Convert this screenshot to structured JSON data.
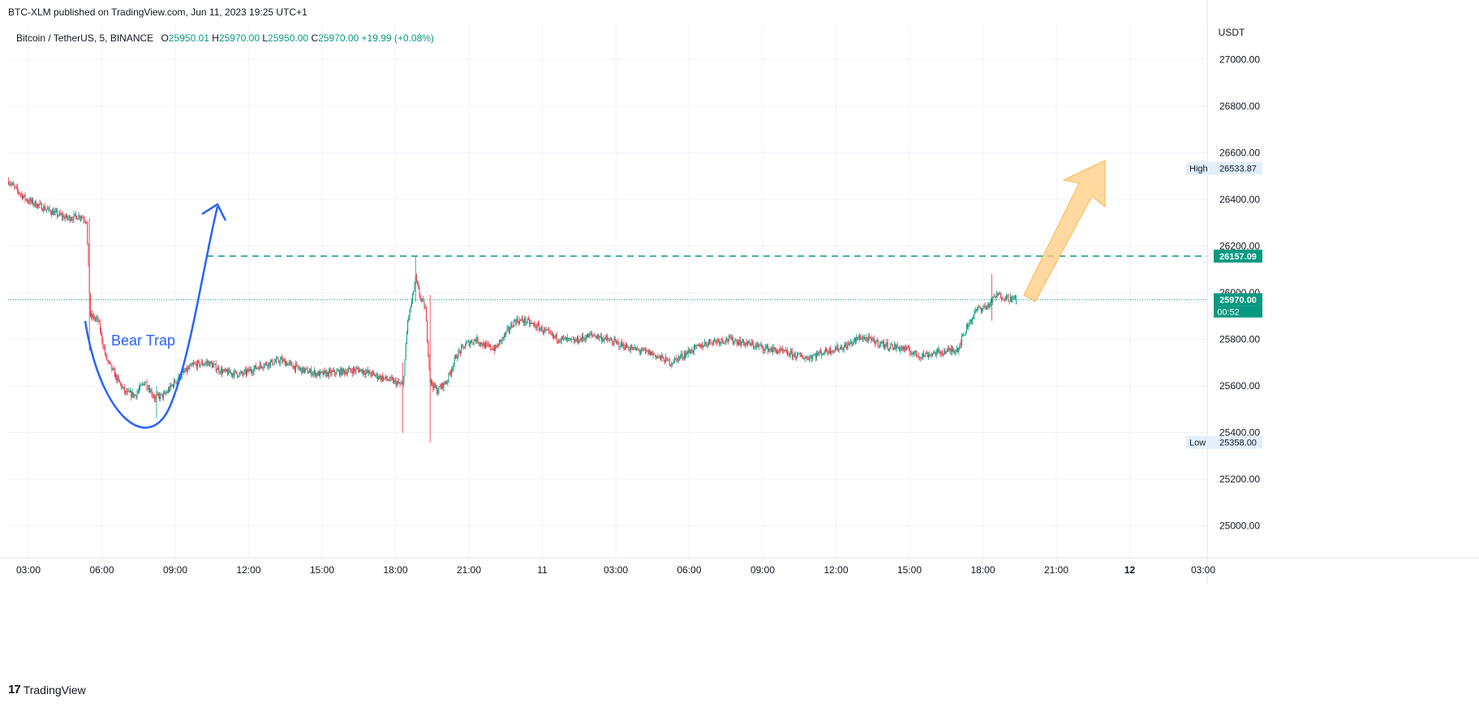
{
  "header": {
    "publish_line": "BTC-XLM published on TradingView.com, Jun 11, 2023 19:25 UTC+1"
  },
  "legend": {
    "symbol": "Bitcoin / TetherUS, 5, BINANCE",
    "open_label": "O",
    "open": "25950.01",
    "high_label": "H",
    "high": "25970.00",
    "low_label": "L",
    "low": "25950.00",
    "close_label": "C",
    "close": "25970.00",
    "change": "+19.99 (+0.08%)"
  },
  "brand": {
    "logo": "17",
    "name": "TradingView"
  },
  "colors": {
    "up": "#089981",
    "down": "#f23645",
    "grid": "#f0f3fa",
    "annotation_blue": "#2962ff",
    "annotation_orange": "#ffcc80",
    "level_line": "#089981",
    "label_bg": "#e3effd"
  },
  "chart_data": {
    "type": "candlestick",
    "currency": "USDT",
    "y_axis": {
      "unit": "USDT",
      "ticks": [
        25000,
        25200,
        25400,
        25600,
        25800,
        26000,
        26200,
        26400,
        26600,
        26800,
        27000
      ],
      "tick_labels": [
        "25000.00",
        "25200.00",
        "25400.00",
        "25600.00",
        "25800.00",
        "26000.00",
        "26200.00",
        "26400.00",
        "26600.00",
        "26800.00",
        "27000.00"
      ],
      "range": [
        24800,
        27200
      ]
    },
    "x_axis": {
      "tick_labels": [
        "03:00",
        "06:00",
        "09:00",
        "12:00",
        "15:00",
        "18:00",
        "21:00",
        "11",
        "03:00",
        "06:00",
        "09:00",
        "12:00",
        "15:00",
        "18:00",
        "21:00",
        "12",
        "03:00"
      ],
      "bold": [
        false,
        false,
        false,
        false,
        false,
        false,
        false,
        false,
        false,
        false,
        false,
        false,
        false,
        false,
        false,
        true,
        false
      ]
    },
    "price_path": [
      [
        0,
        26480
      ],
      [
        6,
        26450
      ],
      [
        18,
        26400
      ],
      [
        28,
        26380
      ],
      [
        38,
        26360
      ],
      [
        48,
        26340
      ],
      [
        60,
        26320
      ],
      [
        74,
        26330
      ],
      [
        80,
        26310
      ],
      [
        84,
        25900
      ],
      [
        92,
        25880
      ],
      [
        100,
        25720
      ],
      [
        110,
        25640
      ],
      [
        120,
        25570
      ],
      [
        130,
        25560
      ],
      [
        140,
        25620
      ],
      [
        150,
        25550
      ],
      [
        160,
        25560
      ],
      [
        175,
        25640
      ],
      [
        190,
        25690
      ],
      [
        205,
        25700
      ],
      [
        220,
        25660
      ],
      [
        240,
        25650
      ],
      [
        260,
        25690
      ],
      [
        280,
        25710
      ],
      [
        300,
        25670
      ],
      [
        320,
        25650
      ],
      [
        340,
        25660
      ],
      [
        360,
        25670
      ],
      [
        380,
        25640
      ],
      [
        395,
        25620
      ],
      [
        405,
        25600
      ],
      [
        410,
        25880
      ],
      [
        414,
        25960
      ],
      [
        418,
        26060
      ],
      [
        422,
        25990
      ],
      [
        428,
        25930
      ],
      [
        433,
        25620
      ],
      [
        440,
        25580
      ],
      [
        450,
        25620
      ],
      [
        460,
        25730
      ],
      [
        470,
        25780
      ],
      [
        480,
        25800
      ],
      [
        490,
        25770
      ],
      [
        500,
        25760
      ],
      [
        510,
        25820
      ],
      [
        520,
        25880
      ],
      [
        530,
        25880
      ],
      [
        545,
        25850
      ],
      [
        560,
        25810
      ],
      [
        580,
        25790
      ],
      [
        600,
        25820
      ],
      [
        620,
        25790
      ],
      [
        640,
        25760
      ],
      [
        660,
        25740
      ],
      [
        680,
        25700
      ],
      [
        700,
        25750
      ],
      [
        720,
        25790
      ],
      [
        740,
        25800
      ],
      [
        760,
        25780
      ],
      [
        780,
        25760
      ],
      [
        800,
        25740
      ],
      [
        820,
        25720
      ],
      [
        840,
        25750
      ],
      [
        860,
        25770
      ],
      [
        875,
        25810
      ],
      [
        890,
        25790
      ],
      [
        905,
        25770
      ],
      [
        920,
        25760
      ],
      [
        935,
        25730
      ],
      [
        950,
        25740
      ],
      [
        965,
        25750
      ],
      [
        975,
        25760
      ],
      [
        985,
        25860
      ],
      [
        995,
        25930
      ],
      [
        1005,
        25940
      ],
      [
        1015,
        25990
      ],
      [
        1025,
        25980
      ],
      [
        1035,
        25970
      ]
    ],
    "volatility": 18,
    "wick_spikes": [
      {
        "index": 83,
        "high": 26320,
        "low": 25750
      },
      {
        "index": 405,
        "high": 25700,
        "low": 25400
      },
      {
        "index": 418,
        "high": 26157.09,
        "low": 25960
      },
      {
        "index": 433,
        "high": 25990,
        "low": 25358
      },
      {
        "index": 152,
        "high": 25600,
        "low": 25460
      },
      {
        "index": 1010,
        "high": 26080,
        "low": 25880
      }
    ],
    "last_price": 25970.0,
    "high": 26533.87,
    "low": 25358.0,
    "high_label": "High",
    "high_value": "26533.87",
    "low_label": "Low",
    "low_value": "25358.00",
    "last_label": "25970.00",
    "countdown": "00:52",
    "level": 26157.09,
    "level_label": "26157.09",
    "annotations": {
      "bear_trap_text": "Bear Trap"
    }
  }
}
